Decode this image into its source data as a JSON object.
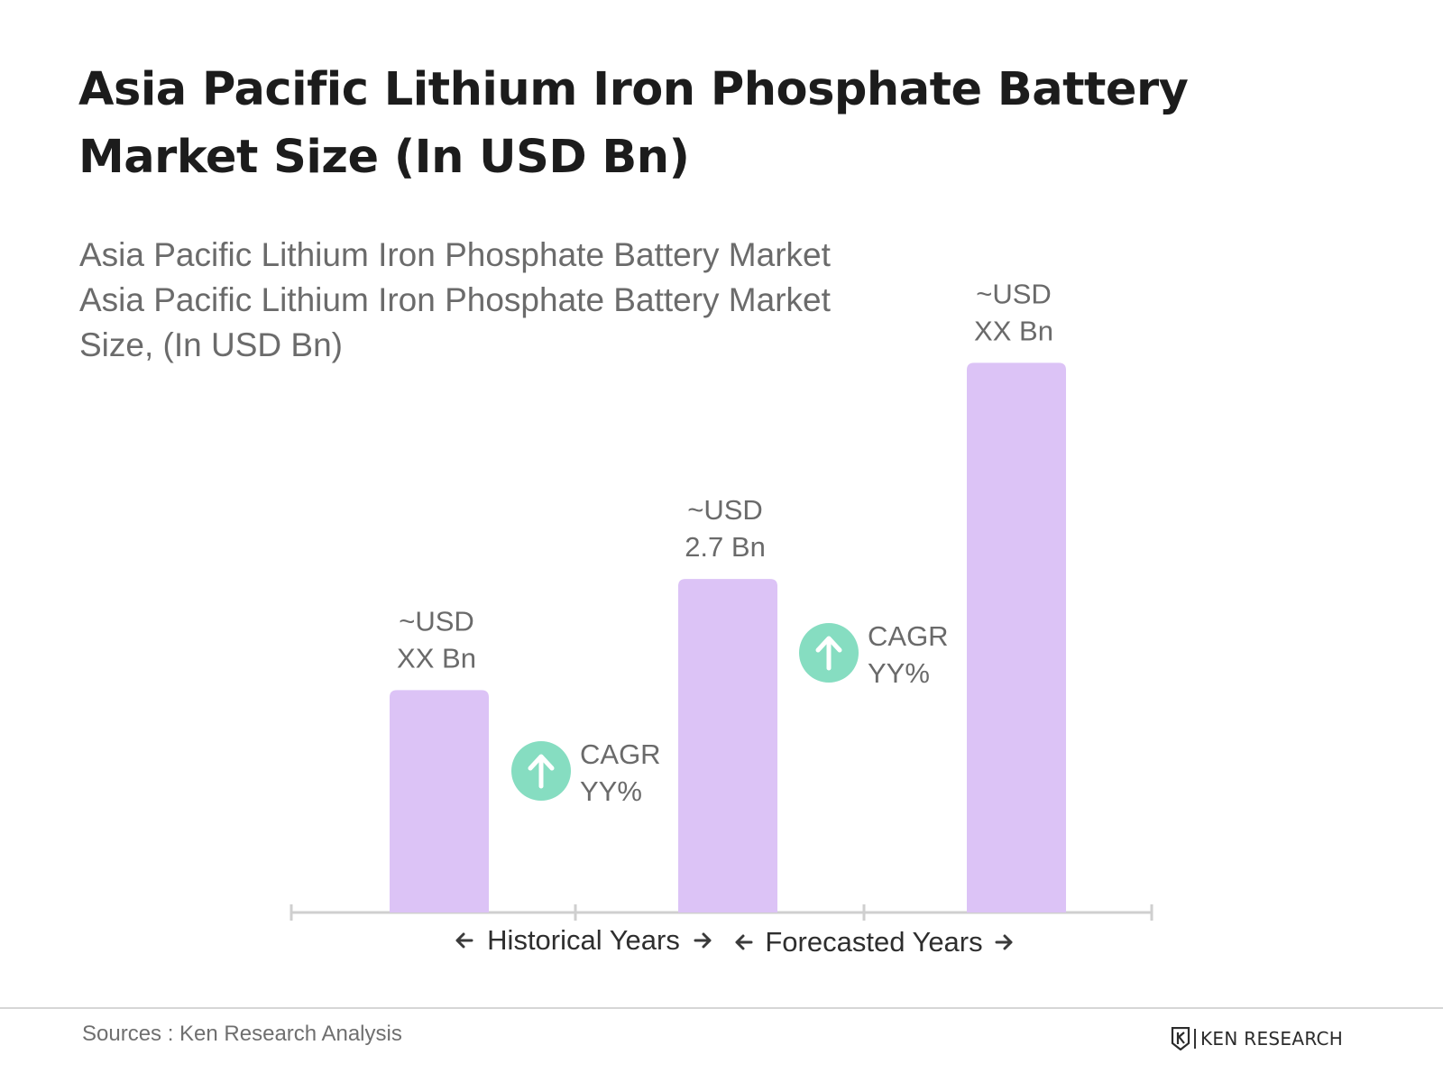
{
  "title": "Asia Pacific Lithium Iron Phosphate Battery Market Size (In USD Bn)",
  "subtitle_lines": [
    "Asia Pacific Lithium Iron Phosphate Battery Market",
    "Asia Pacific Lithium Iron Phosphate Battery Market",
    "Size, (In USD Bn)"
  ],
  "chart_data": {
    "type": "bar",
    "bar_color": "#dcc3f6",
    "values": [
      1.8,
      2.7,
      4.45
    ],
    "labels": [
      [
        "~USD",
        "XX Bn"
      ],
      [
        "~USD",
        "2.7 Bn"
      ],
      [
        "~USD",
        "XX Bn"
      ]
    ],
    "cagr": [
      {
        "icon": "arrow-up-icon",
        "color": "#86ddc1",
        "line1": "CAGR",
        "line2": "YY%"
      },
      {
        "icon": "arrow-up-icon",
        "color": "#86ddc1",
        "line1": "CAGR",
        "line2": "YY%"
      }
    ],
    "periods": [
      {
        "label": "Historical Years"
      },
      {
        "label": "Forecasted Years"
      }
    ],
    "axis_color": "#cfcfcf"
  },
  "footer": {
    "source": "Sources : Ken Research Analysis",
    "logo_text": "KEN RESEARCH"
  }
}
